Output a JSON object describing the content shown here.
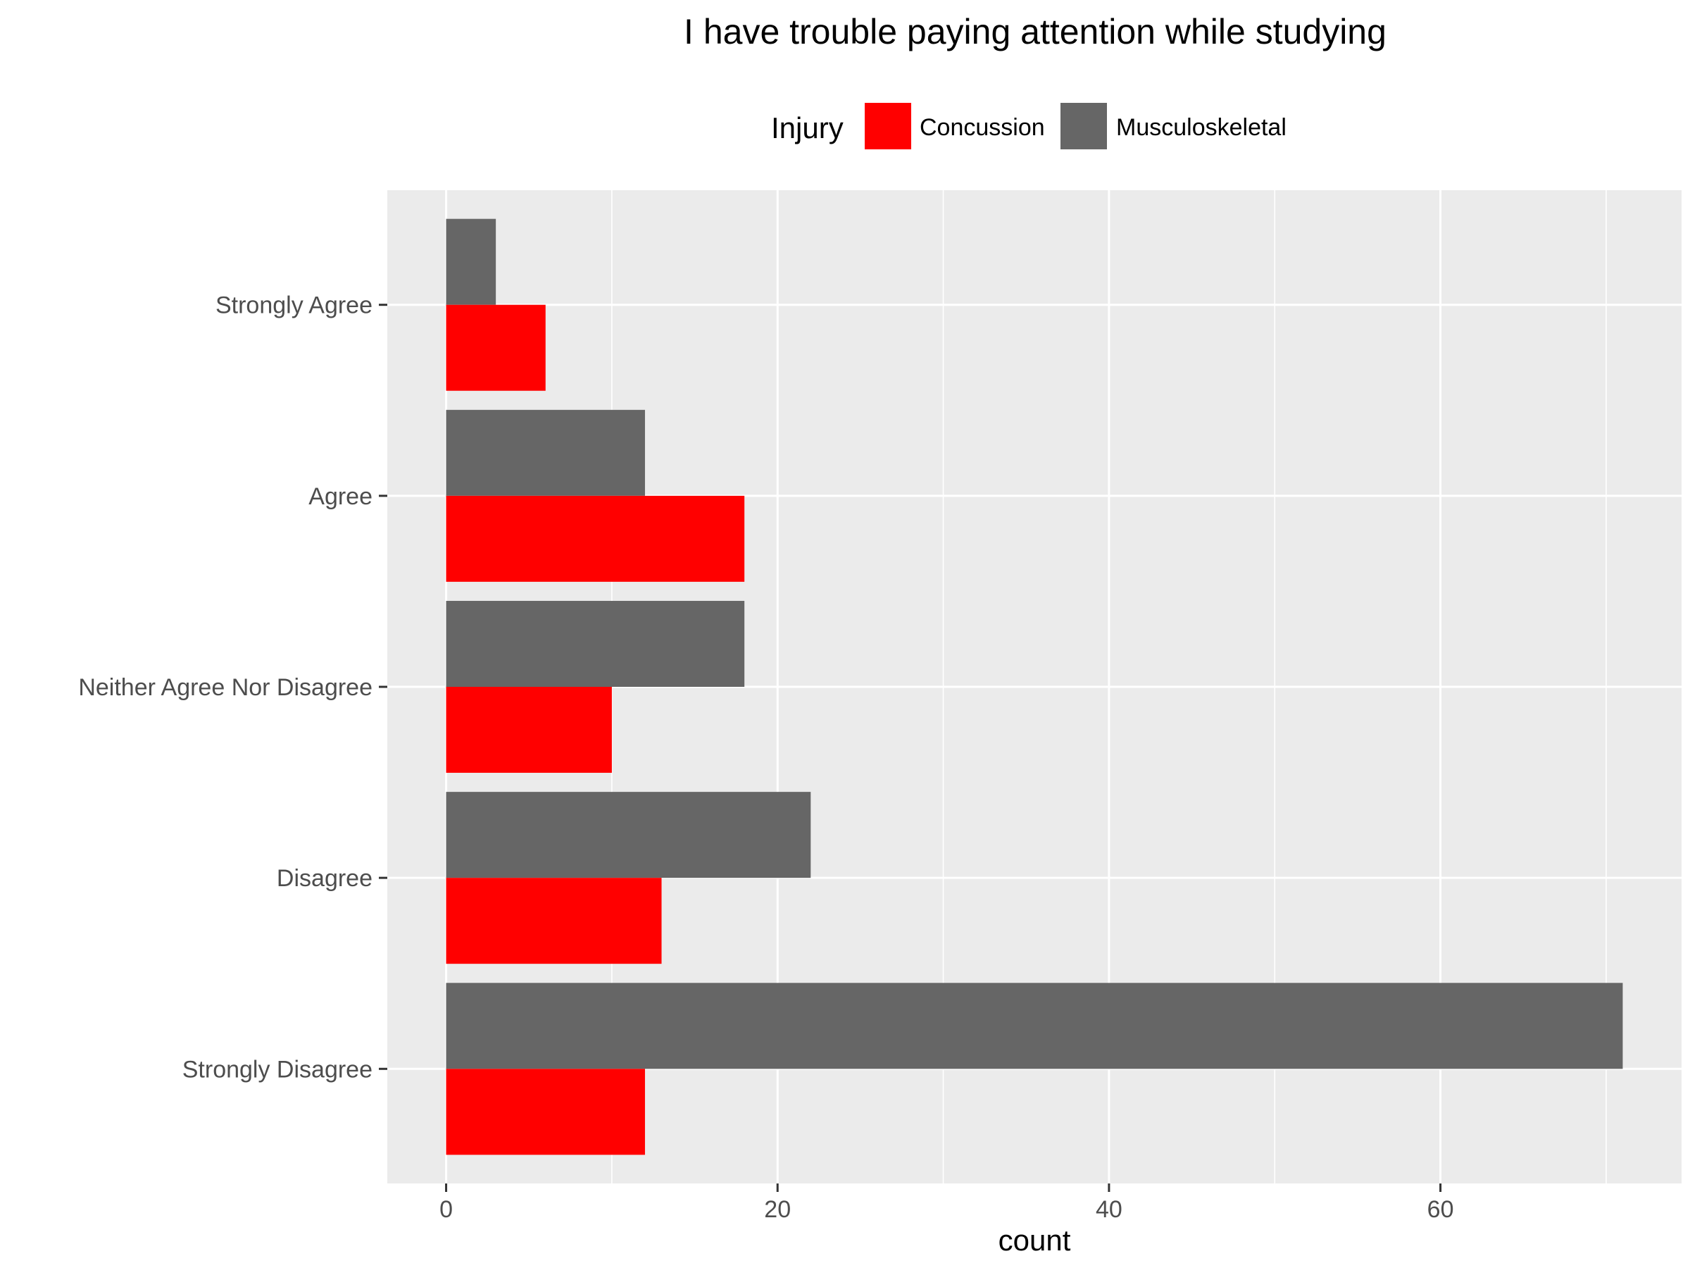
{
  "chart_data": {
    "type": "bar",
    "orientation": "horizontal",
    "title": "I have trouble paying attention while studying",
    "xlabel": "count",
    "ylabel": "",
    "legend": {
      "title": "Injury",
      "position": "top",
      "entries": [
        "Concussion",
        "Musculoskeletal"
      ]
    },
    "categories": [
      "Strongly Agree",
      "Agree",
      "Neither Agree Nor Disagree",
      "Disagree",
      "Strongly Disagree"
    ],
    "series": [
      {
        "name": "Concussion",
        "color": "#ff0000",
        "values": [
          6,
          18,
          10,
          13,
          12
        ]
      },
      {
        "name": "Musculoskeletal",
        "color": "#666666",
        "values": [
          3,
          12,
          18,
          22,
          71
        ]
      }
    ],
    "x_ticks": [
      "0",
      "20",
      "40",
      "60"
    ],
    "xlim": [
      -3.55,
      74.55
    ],
    "grid": true,
    "panel_background": "#ebebeb",
    "grid_color": "#ffffff"
  }
}
